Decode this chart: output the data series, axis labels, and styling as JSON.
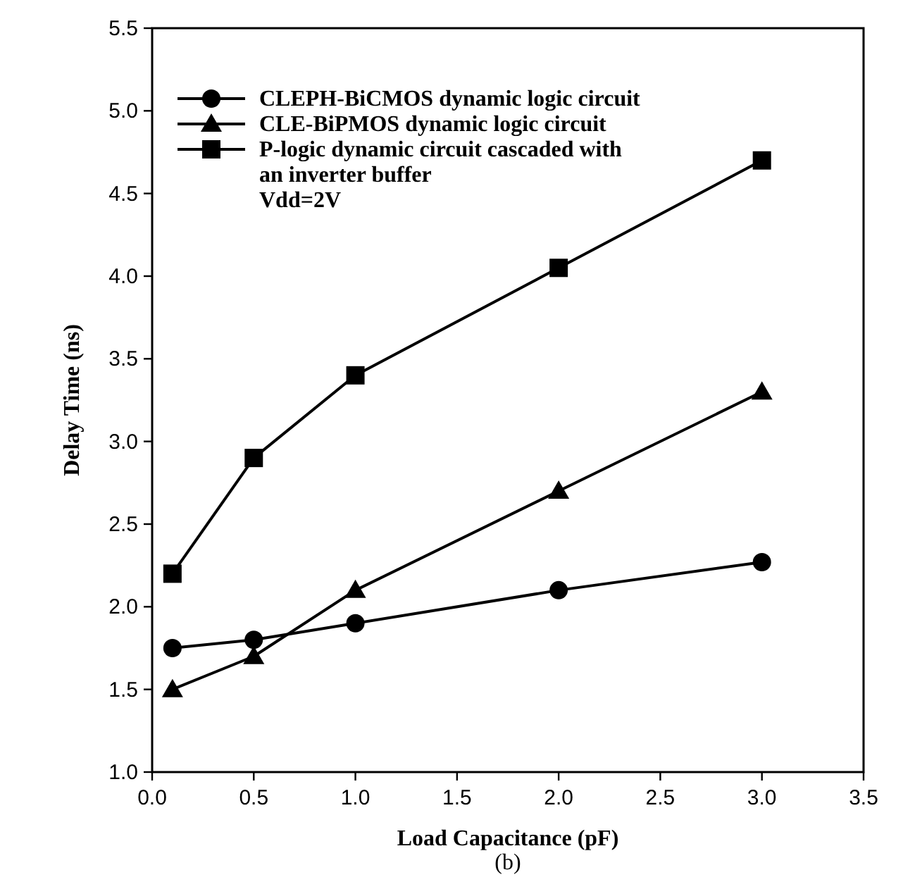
{
  "chart_data": {
    "type": "line",
    "xlabel": "Load Capacitance (pF)",
    "ylabel": "Delay Time (ns)",
    "x": [
      0.1,
      0.5,
      1.0,
      2.0,
      3.0
    ],
    "series": [
      {
        "name": "CLEPH-BiCMOS dynamic logic circuit",
        "color": "#000000",
        "marker": "circle",
        "values": [
          1.75,
          1.8,
          1.9,
          2.1,
          2.27
        ]
      },
      {
        "name": "CLE-BiPMOS dynamic logic circuit",
        "color": "#000000",
        "marker": "triangle",
        "values": [
          1.5,
          1.7,
          2.1,
          2.7,
          3.3
        ]
      },
      {
        "name": "P-logic dynamic circuit cascaded with an inverter buffer",
        "color": "#000000",
        "marker": "square",
        "values": [
          2.2,
          2.9,
          3.4,
          4.05,
          4.7
        ]
      }
    ],
    "xlim": [
      0,
      3.5
    ],
    "xticks": [
      {
        "value": 0,
        "label": "0.0"
      },
      0.5,
      {
        "value": 1,
        "label": "1.0"
      },
      1.5,
      {
        "value": 2,
        "label": "2.0"
      },
      2.5,
      {
        "value": 3,
        "label": "3.0"
      },
      3.5
    ],
    "ylim": [
      1,
      5.5
    ],
    "yticks": [
      {
        "value": 1,
        "label": "1.0"
      },
      1.5,
      {
        "value": 2,
        "label": "2.0"
      },
      2.5,
      {
        "value": 3,
        "label": "3.0"
      },
      3.5,
      {
        "value": 4,
        "label": "4.0"
      },
      4.5,
      {
        "value": 5,
        "label": "5.0"
      },
      5.5
    ],
    "grid": false,
    "legend": "top left",
    "line_style": "solid",
    "annotations": [
      "Vdd=2V",
      "(b)"
    ]
  }
}
